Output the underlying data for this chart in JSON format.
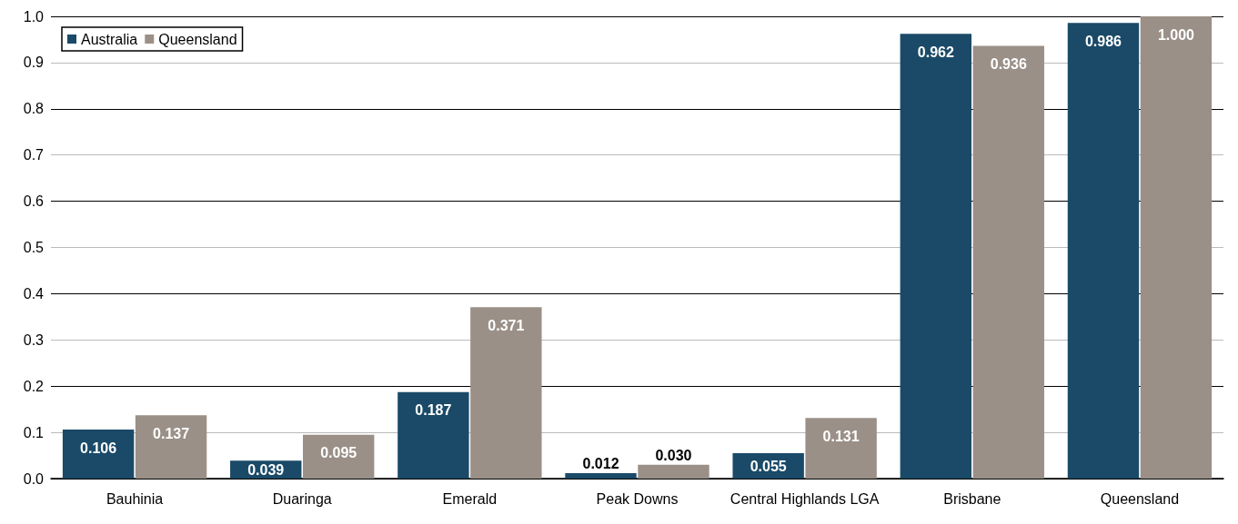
{
  "chart_data": {
    "type": "bar",
    "categories": [
      "Bauhinia",
      "Duaringa",
      "Emerald",
      "Peak Downs",
      "Central Highlands LGA",
      "Brisbane",
      "Queensland"
    ],
    "series": [
      {
        "name": "Australia",
        "color": "#1a4a68",
        "values": [
          0.106,
          0.039,
          0.187,
          0.012,
          0.055,
          0.962,
          0.986
        ],
        "value_labels": [
          "0.106",
          "0.039",
          "0.187",
          "0.012",
          "0.055",
          "0.962",
          "0.986"
        ]
      },
      {
        "name": "Queensland",
        "color": "#9a9087",
        "values": [
          0.137,
          0.095,
          0.371,
          0.03,
          0.131,
          0.936,
          1.0
        ],
        "value_labels": [
          "0.137",
          "0.095",
          "0.371",
          "0.030",
          "0.131",
          "0.936",
          "1.000"
        ]
      }
    ],
    "ylim": [
      0,
      1
    ],
    "yticks": [
      {
        "value": 0,
        "label": "0.0"
      },
      {
        "value": 0.1,
        "label": "0.1"
      },
      {
        "value": 0.2,
        "label": "0.2"
      },
      {
        "value": 0.3,
        "label": "0.3"
      },
      {
        "value": 0.4,
        "label": "0.4"
      },
      {
        "value": 0.5,
        "label": "0.5"
      },
      {
        "value": 0.6,
        "label": "0.6"
      },
      {
        "value": 0.7,
        "label": "0.7"
      },
      {
        "value": 0.8,
        "label": "0.8"
      },
      {
        "value": 0.9,
        "label": "0.9"
      },
      {
        "value": 1,
        "label": "1.0"
      }
    ],
    "grid": true,
    "legend": "top left"
  }
}
